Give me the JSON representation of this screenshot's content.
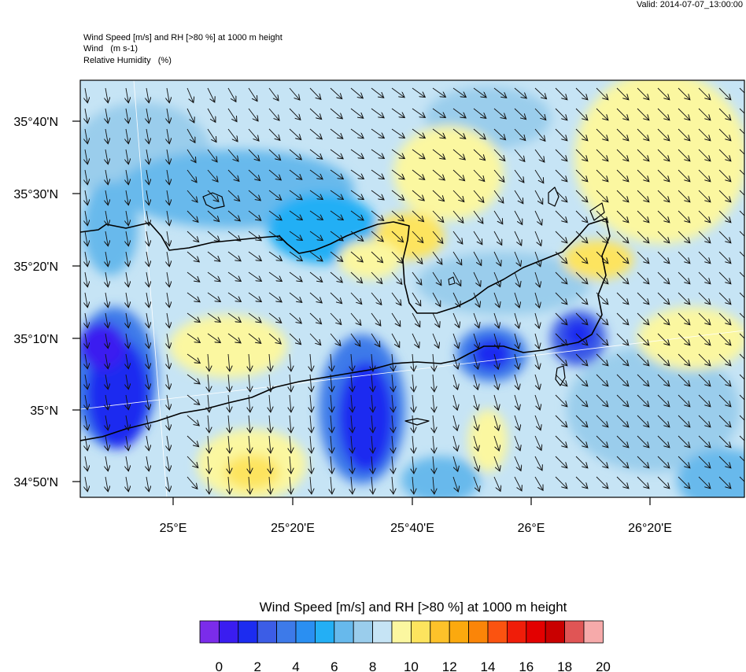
{
  "valid_time": "Valid: 2014-07-07_13:00:00",
  "header": {
    "line1": "Wind Speed [m/s] and RH [>80 %] at 1000 m height",
    "line2": "Wind   (m s-1)",
    "line3": "Relative Humidity   (%)"
  },
  "axes": {
    "lat_labels": [
      "35°40'N",
      "35°30'N",
      "35°20'N",
      "35°10'N",
      "35°N",
      "34°50'N"
    ],
    "lon_labels": [
      "25°E",
      "25°20'E",
      "25°40'E",
      "26°E",
      "26°20'E"
    ]
  },
  "colorbar": {
    "title": "Wind Speed [m/s] and RH [>80 %] at 1000 m height",
    "labels": [
      "0",
      "2",
      "4",
      "6",
      "8",
      "10",
      "12",
      "14",
      "16",
      "18",
      "20"
    ],
    "colors": [
      "#7b2cea",
      "#3a1df0",
      "#1c2cf0",
      "#3c5de6",
      "#3d7ae9",
      "#2a8ff2",
      "#23aff5",
      "#67b9ec",
      "#9acdec",
      "#c6e4f5",
      "#fbf7a0",
      "#fde45e",
      "#fdc22a",
      "#fba90e",
      "#fb8508",
      "#fb5310",
      "#f01d09",
      "#e30000",
      "#c90000",
      "#e05555",
      "#f6aaaa"
    ]
  },
  "colors": {
    "background_field": "#c6e4f5",
    "coastline": "#000000",
    "arrows": "#111111"
  }
}
